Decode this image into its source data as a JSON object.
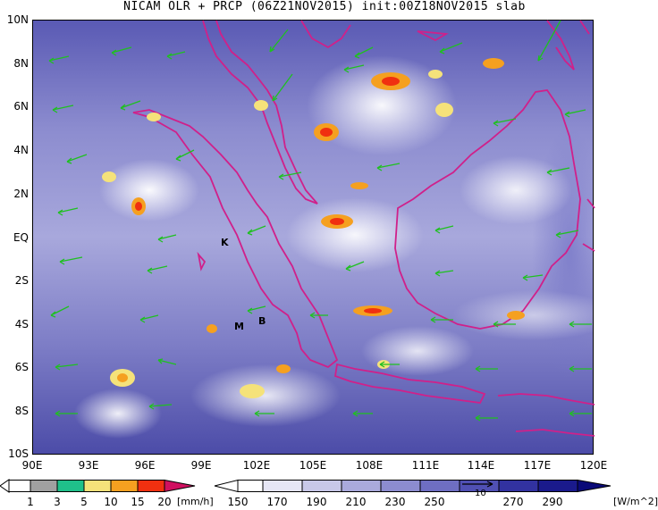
{
  "title": "NICAM OLR + PRCP (06Z21NOV2015) init:00Z18NOV2015 slab",
  "map": {
    "lat_labels": [
      "10N",
      "8N",
      "6N",
      "4N",
      "2N",
      "EQ",
      "2S",
      "4S",
      "6S",
      "8S",
      "10S"
    ],
    "lon_labels": [
      "90E",
      "93E",
      "96E",
      "99E",
      "102E",
      "105E",
      "108E",
      "111E",
      "114E",
      "117E",
      "120E"
    ],
    "point_labels": [
      "K",
      "M",
      "B"
    ],
    "lat_range": [
      -10,
      10
    ],
    "lon_range": [
      90,
      120
    ]
  },
  "precip_colorbar": {
    "labels": [
      "1",
      "3",
      "5",
      "10",
      "15",
      "20"
    ],
    "unit": "[mm/h]",
    "colors": [
      "#ffffff",
      "#a0a0a0",
      "#1fc08a",
      "#f5e27a",
      "#f5a020",
      "#f03010",
      "#d01060"
    ]
  },
  "olr_colorbar": {
    "labels": [
      "150",
      "170",
      "190",
      "210",
      "230",
      "250",
      "270",
      "290"
    ],
    "unit": "[W/m^2]",
    "colors": [
      "#ffffff",
      "#e6e6f5",
      "#c8c8e8",
      "#aaaadc",
      "#8c8ccf",
      "#6e6ec2",
      "#5050b4",
      "#3232a0",
      "#1a1a8c",
      "#0a0a78"
    ]
  },
  "reference_vector_label": "10"
}
